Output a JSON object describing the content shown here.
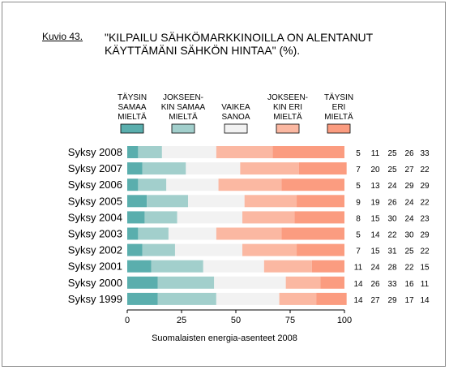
{
  "figure": {
    "label": "Kuvio 43.",
    "title_lines": [
      "\"KILPAILU SÄHKÖMARKKINOILLA ON ALENTANUT",
      "KÄYTTÄMÄNI SÄHKÖN HINTAA\" (%)."
    ],
    "source": "Suomalaisten energia-asenteet 2008"
  },
  "chart_data": {
    "type": "bar",
    "orientation": "horizontal",
    "stacked": true,
    "categories": [
      "Syksy 2008",
      "Syksy 2007",
      "Syksy 2006",
      "Syksy 2005",
      "Syksy 2004",
      "Syksy 2003",
      "Syksy 2002",
      "Syksy 2001",
      "Syksy 2000",
      "Syksy 1999"
    ],
    "series": [
      {
        "name_lines": [
          "TÄYSIN",
          "SAMAA",
          "MIELTÄ"
        ],
        "color": "#5aaead",
        "values": [
          5,
          7,
          5,
          9,
          8,
          5,
          7,
          11,
          14,
          14
        ]
      },
      {
        "name_lines": [
          "JOKSEEN-",
          "KIN SAMAA",
          "MIELTÄ"
        ],
        "color": "#a2cfcc",
        "values": [
          11,
          20,
          13,
          19,
          15,
          14,
          15,
          24,
          26,
          27
        ]
      },
      {
        "name_lines": [
          "VAIKEA",
          "SANOA"
        ],
        "color": "#f2f2f2",
        "values": [
          25,
          25,
          24,
          26,
          30,
          22,
          31,
          28,
          33,
          29
        ]
      },
      {
        "name_lines": [
          "JOKSEEN-",
          "KIN ERI",
          "MIELTÄ"
        ],
        "color": "#fbb8a2",
        "values": [
          26,
          27,
          29,
          24,
          24,
          30,
          25,
          22,
          16,
          17
        ]
      },
      {
        "name_lines": [
          "TÄYSIN",
          "ERI",
          "MIELTÄ"
        ],
        "color": "#fb9c80",
        "values": [
          33,
          22,
          29,
          22,
          23,
          29,
          22,
          15,
          11,
          14
        ]
      }
    ],
    "xlim": [
      0,
      100
    ],
    "xticks": [
      "0",
      "25",
      "50",
      "75",
      "100"
    ],
    "grid": false,
    "legend_position": "top",
    "value_labels": "right-of-bars"
  }
}
